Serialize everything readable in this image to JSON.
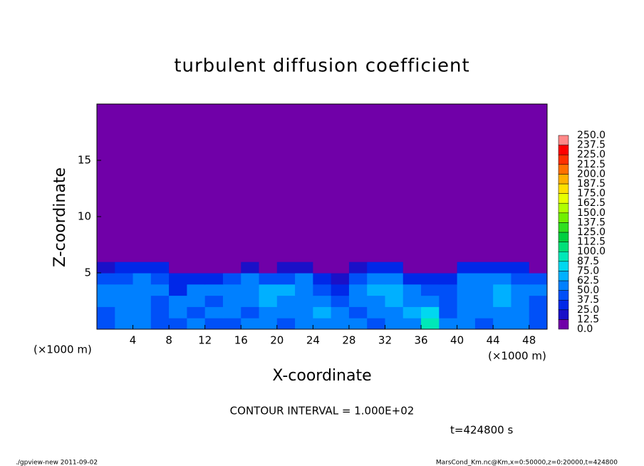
{
  "chart_data": {
    "type": "heatmap",
    "title": "turbulent diffusion coefficient",
    "x_label": "X-coordinate",
    "y_label": "Z-coordinate",
    "x_unit_left": "(×1000 m)",
    "x_unit_right": "(×1000 m)",
    "contour_note": "CONTOUR INTERVAL = 1.000E+02",
    "time_note": "t=424800 s",
    "footer_left": "./gpview-new  2011-09-02",
    "footer_right": "MarsCond_Km.nc@Km,x=0:50000,z=0:20000,t=424800",
    "xlim": [
      0,
      50
    ],
    "ylim": [
      0,
      20
    ],
    "xticks": [
      4,
      8,
      12,
      16,
      20,
      24,
      28,
      32,
      36,
      40,
      44,
      48
    ],
    "yticks": [
      5,
      10,
      15
    ],
    "x_edges": [
      0,
      2,
      4,
      6,
      8,
      10,
      12,
      14,
      16,
      18,
      20,
      22,
      24,
      26,
      28,
      30,
      32,
      34,
      36,
      38,
      40,
      42,
      44,
      46,
      48,
      50
    ],
    "z_edges": [
      0,
      1,
      2,
      3,
      4,
      5,
      6,
      20
    ],
    "values": [
      [
        45,
        50,
        55,
        40,
        45,
        50,
        40,
        45,
        50,
        55,
        45,
        50,
        60,
        55,
        50,
        45,
        55,
        60,
        90,
        50,
        55,
        45,
        50,
        55,
        45
      ],
      [
        40,
        55,
        60,
        45,
        50,
        45,
        50,
        55,
        45,
        60,
        50,
        55,
        65,
        50,
        45,
        50,
        60,
        70,
        80,
        45,
        50,
        55,
        60,
        50,
        40
      ],
      [
        50,
        60,
        55,
        40,
        55,
        50,
        45,
        60,
        55,
        65,
        60,
        55,
        50,
        45,
        55,
        60,
        65,
        55,
        50,
        40,
        50,
        60,
        65,
        55,
        45
      ],
      [
        55,
        50,
        60,
        50,
        35,
        55,
        50,
        55,
        60,
        65,
        70,
        60,
        45,
        35,
        60,
        70,
        65,
        50,
        40,
        45,
        55,
        60,
        65,
        55,
        50
      ],
      [
        45,
        40,
        55,
        45,
        30,
        25,
        35,
        45,
        50,
        40,
        45,
        50,
        30,
        20,
        45,
        50,
        55,
        35,
        25,
        35,
        50,
        55,
        50,
        45,
        40
      ],
      [
        20,
        30,
        35,
        25,
        5,
        5,
        5,
        5,
        15,
        10,
        15,
        20,
        5,
        5,
        20,
        25,
        25,
        5,
        5,
        5,
        25,
        35,
        30,
        25,
        10
      ],
      [
        0,
        0,
        0,
        0,
        0,
        0,
        0,
        0,
        0,
        0,
        0,
        0,
        0,
        0,
        0,
        0,
        0,
        0,
        0,
        0,
        0,
        0,
        0,
        0,
        0
      ]
    ],
    "levels": [
      {
        "value": 0,
        "label": "0.0"
      },
      {
        "value": 12.5,
        "label": "12.5"
      },
      {
        "value": 25,
        "label": "25.0"
      },
      {
        "value": 37.5,
        "label": "37.5"
      },
      {
        "value": 50,
        "label": "50.0"
      },
      {
        "value": 62.5,
        "label": "62.5"
      },
      {
        "value": 75,
        "label": "75.0"
      },
      {
        "value": 87.5,
        "label": "87.5"
      },
      {
        "value": 100,
        "label": "100.0"
      },
      {
        "value": 112.5,
        "label": "112.5"
      },
      {
        "value": 125,
        "label": "125.0"
      },
      {
        "value": 137.5,
        "label": "137.5"
      },
      {
        "value": 150,
        "label": "150.0"
      },
      {
        "value": 162.5,
        "label": "162.5"
      },
      {
        "value": 175,
        "label": "175.0"
      },
      {
        "value": 187.5,
        "label": "187.5"
      },
      {
        "value": 200,
        "label": "200.0"
      },
      {
        "value": 212.5,
        "label": "212.5"
      },
      {
        "value": 225,
        "label": "225.0"
      },
      {
        "value": 237.5,
        "label": "237.5"
      },
      {
        "value": 250,
        "label": "250.0"
      }
    ],
    "colors": [
      "#7000a8",
      "#1a10c8",
      "#0028e8",
      "#0050f8",
      "#0080ff",
      "#00b0ff",
      "#00d8f0",
      "#00e8b8",
      "#00e078",
      "#00d040",
      "#30e020",
      "#70f000",
      "#b0ff00",
      "#e8ff00",
      "#ffe000",
      "#ffb000",
      "#ff7000",
      "#ff3000",
      "#ff0000",
      "#ff8888"
    ]
  }
}
